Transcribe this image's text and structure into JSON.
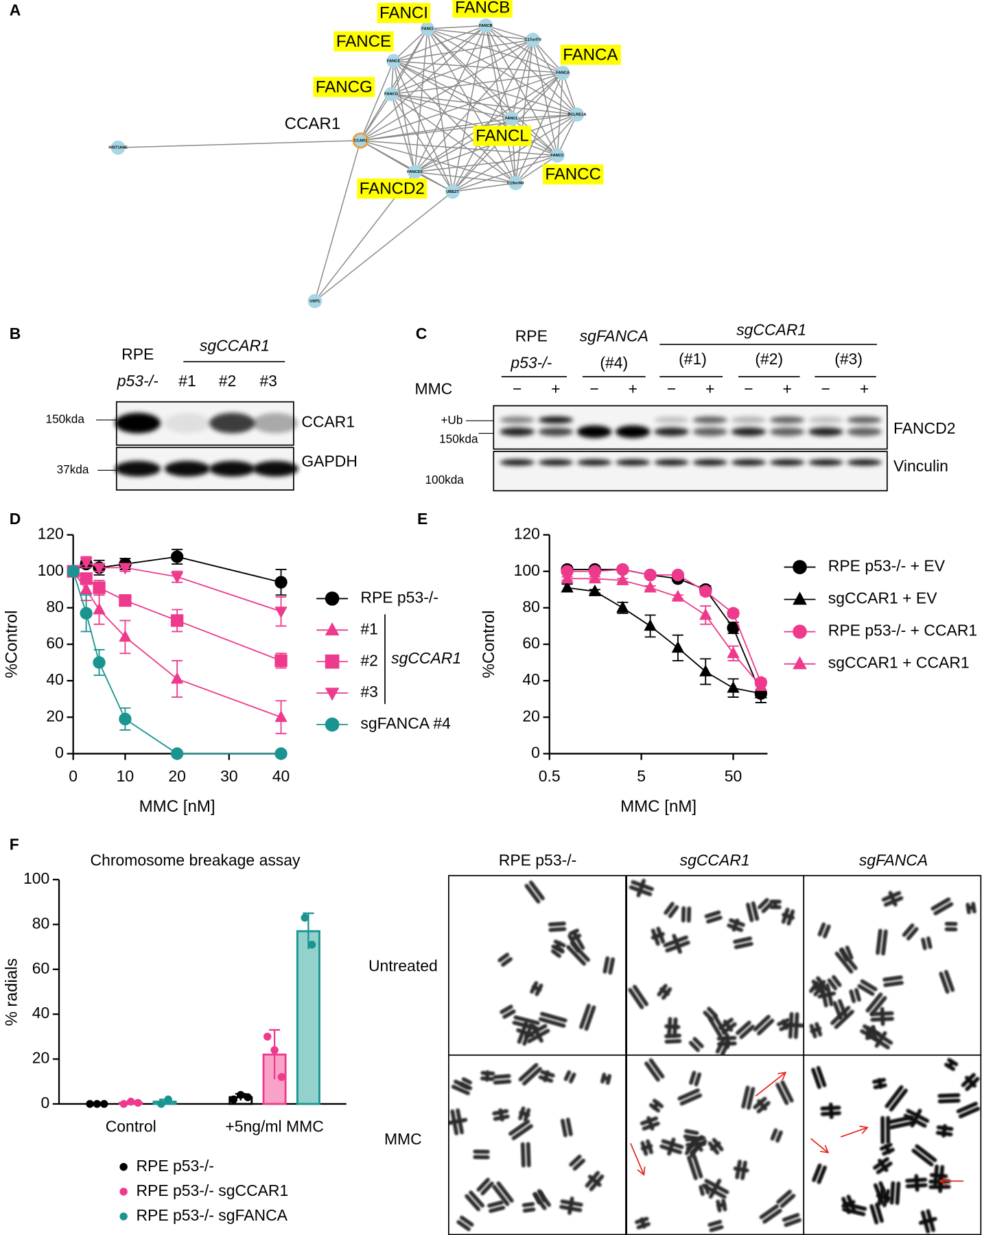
{
  "panel_a": {
    "label": "A",
    "nodes": [
      "FANCI",
      "FANCB",
      "C17orf70",
      "FANCA",
      "DCLRE1A",
      "FANCC",
      "C19orf40",
      "UBE2T",
      "FANCD2",
      "CCAR1",
      "FANCG",
      "FANCE",
      "FANCL",
      "HIST1H4E",
      "USP1"
    ],
    "callouts": [
      {
        "label": "FANCI",
        "background": "#ffff00"
      },
      {
        "label": "FANCB",
        "background": "#ffff00"
      },
      {
        "label": "FANCE",
        "background": "#ffff00"
      },
      {
        "label": "FANCA",
        "background": "#ffff00"
      },
      {
        "label": "FANCG",
        "background": "#ffff00"
      },
      {
        "label": "CCAR1",
        "color": "#e4232b"
      },
      {
        "label": "FANCL",
        "background": "#ffff00"
      },
      {
        "label": "FANCC",
        "background": "#ffff00"
      },
      {
        "label": "FANCD2",
        "background": "#ffff00"
      }
    ]
  },
  "panel_b": {
    "label": "B",
    "header": [
      "RPE",
      "p53-/-"
    ],
    "group": "sgCCAR1",
    "lanes": [
      "#1",
      "#2",
      "#3"
    ],
    "markers": [
      "150kda",
      "37kda"
    ],
    "rows": [
      "CCAR1",
      "GAPDH"
    ]
  },
  "panel_c": {
    "label": "C",
    "groups": [
      [
        "RPE",
        "p53-/-"
      ],
      [
        "sgFANCA",
        "(#4)"
      ]
    ],
    "subgroup_header": "sgCCAR1",
    "subgroups": [
      "(#1)",
      "(#2)",
      "(#3)"
    ],
    "treatment": "MMC",
    "lane_marks": [
      "−",
      "+",
      "−",
      "+",
      "−",
      "+",
      "−",
      "+",
      "−",
      "+"
    ],
    "markers": [
      "+Ub",
      "150kda",
      "100kda"
    ],
    "rows": [
      "FANCD2",
      "Vinculin"
    ]
  },
  "chart_data": [
    {
      "panel": "D",
      "type": "line",
      "x": [
        0,
        2.5,
        5,
        10,
        20,
        40
      ],
      "xlim": [
        0,
        40
      ],
      "xticks": [
        0,
        10,
        20,
        30,
        40
      ],
      "ylim": [
        0,
        120
      ],
      "yticks": [
        0,
        20,
        40,
        60,
        80,
        100,
        120
      ],
      "xlabel": "MMC [nM]",
      "ylabel": "%Control",
      "legend": "right",
      "legend_group": "sgCCAR1",
      "series": [
        {
          "name": "RPE p53-/-",
          "color": "#000000",
          "marker": "circle",
          "values": [
            100,
            104,
            102,
            104,
            108,
            94
          ],
          "errors": [
            1,
            2,
            4,
            3,
            4,
            7
          ]
        },
        {
          "name": "#1",
          "color": "#ee3a8c",
          "marker": "triangle-up",
          "values": [
            100,
            90,
            79,
            64,
            41,
            20
          ],
          "errors": [
            1,
            6,
            8,
            9,
            10,
            9
          ]
        },
        {
          "name": "#2",
          "color": "#ee3a8c",
          "marker": "square",
          "values": [
            100,
            96,
            91,
            84,
            73,
            51
          ],
          "errors": [
            1,
            3,
            4,
            2,
            6,
            4
          ]
        },
        {
          "name": "#3",
          "color": "#ee3a8c",
          "marker": "triangle-down",
          "values": [
            100,
            105,
            102,
            102,
            97,
            78
          ],
          "errors": [
            1,
            3,
            2,
            2,
            3,
            8
          ]
        },
        {
          "name": "sgFANCA #4",
          "color": "#1a9490",
          "marker": "circle",
          "values": [
            100,
            77,
            50,
            19,
            0,
            0
          ],
          "errors": [
            1,
            10,
            7,
            6,
            1,
            1
          ]
        }
      ]
    },
    {
      "panel": "E",
      "type": "line",
      "xscale": "log",
      "x": [
        0.78,
        1.56,
        3.13,
        6.25,
        12.5,
        25,
        50,
        100
      ],
      "xlim": [
        0.5,
        118
      ],
      "xticks": [
        0.5,
        5,
        50
      ],
      "ylim": [
        0,
        120
      ],
      "yticks": [
        0,
        20,
        40,
        60,
        80,
        100,
        120
      ],
      "xlabel": "MMC [nM]",
      "ylabel": "%Control",
      "legend": "right",
      "series": [
        {
          "name": "RPE p53-/- + EV",
          "color": "#000000",
          "marker": "circle",
          "values": [
            101,
            101,
            101,
            98,
            96,
            90,
            69,
            33
          ],
          "errors": [
            1,
            1,
            1,
            1,
            1,
            2,
            3,
            5
          ]
        },
        {
          "name": "sgCCAR1 + EV",
          "color": "#000000",
          "marker": "triangle-up",
          "values": [
            91,
            89,
            80,
            70,
            58,
            45,
            36,
            33
          ],
          "errors": [
            2,
            1,
            3,
            6,
            7,
            7,
            5,
            5
          ]
        },
        {
          "name": "RPE p53-/- + CCAR1",
          "color": "#ee3a8c",
          "marker": "circle",
          "values": [
            100,
            100,
            101,
            98,
            98,
            89,
            77,
            39
          ],
          "errors": [
            1,
            1,
            1,
            1,
            1,
            2,
            2,
            2
          ]
        },
        {
          "name": "sgCCAR1 + CCAR1",
          "color": "#ee3a8c",
          "marker": "triangle-up",
          "values": [
            96,
            96,
            95,
            91,
            86,
            76,
            55,
            37
          ],
          "errors": [
            1,
            1,
            1,
            1,
            1,
            5,
            4,
            2
          ]
        }
      ]
    },
    {
      "panel": "F",
      "type": "bar",
      "title": "Chromosome breakage assay",
      "categories": [
        "Control",
        "+5ng/ml MMC"
      ],
      "ylim": [
        0,
        100
      ],
      "yticks": [
        0,
        20,
        40,
        60,
        80,
        100
      ],
      "ylabel": "% radials",
      "legend": "bottom",
      "series": [
        {
          "name": "RPE p53-/-",
          "color": "#000000",
          "bar_color": "#ffffff",
          "values": [
            0,
            3
          ],
          "errors": [
            0,
            1.5
          ],
          "points": [
            [
              0,
              0,
              0
            ],
            [
              2,
              4,
              3
            ]
          ]
        },
        {
          "name": "RPE p53-/- sgCCAR1",
          "color": "#ee3a8c",
          "bar_color": "#f7a3c8",
          "values": [
            0.5,
            22
          ],
          "errors": [
            0.5,
            11
          ],
          "points": [
            [
              0,
              1,
              0.5
            ],
            [
              30,
              24,
              12
            ]
          ]
        },
        {
          "name": "RPE p53-/- sgFANCA",
          "color": "#1a9490",
          "bar_color": "#93d1cd",
          "values": [
            1,
            77
          ],
          "errors": [
            1,
            8
          ],
          "points": [
            [
              0,
              2
            ],
            [
              83,
              71
            ]
          ]
        }
      ]
    }
  ],
  "panel_f_images": {
    "columns": [
      "RPE p53-/-",
      "sgCCAR1",
      "sgFANCA"
    ],
    "rows": [
      "Untreated",
      "MMC"
    ]
  }
}
